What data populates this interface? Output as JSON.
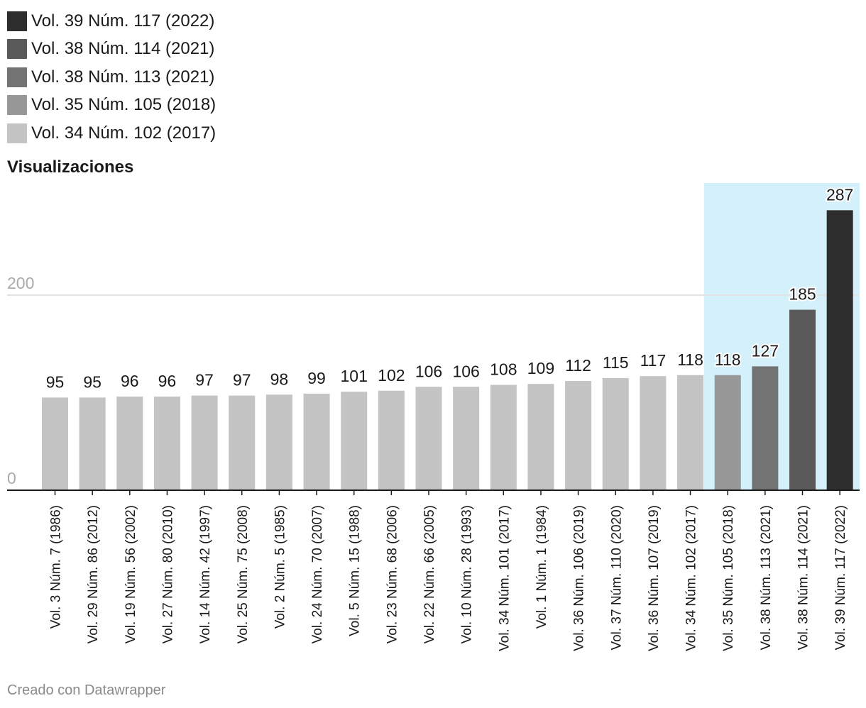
{
  "legend": [
    {
      "label": "Vol. 39 Núm. 117 (2022)",
      "color": "#2d2d2d"
    },
    {
      "label": "Vol. 38 Núm. 114 (2021)",
      "color": "#5a5a5a"
    },
    {
      "label": "Vol. 38 Núm. 113 (2021)",
      "color": "#737373"
    },
    {
      "label": "Vol. 35 Núm. 105 (2018)",
      "color": "#989898"
    },
    {
      "label": "Vol. 34 Núm. 102 (2017)",
      "color": "#c4c4c4"
    }
  ],
  "footer": "Creado con Datawrapper",
  "colors": {
    "default_bar": "#c4c4c4",
    "highlight_band": "#d4f0fb",
    "gridline": "#e2e2e2",
    "tick_text": "#aaaaaa",
    "axis": "#1a1a1a"
  },
  "chart_data": {
    "type": "bar",
    "ylabel": "Visualizaciones",
    "ylim": [
      0,
      300
    ],
    "yticks": [
      0,
      200
    ],
    "grid": true,
    "legend_position": "top-left",
    "highlight_start_category": "Vol. 35 Núm. 105 (2018)",
    "categories": [
      "Vol. 3 Núm. 7 (1986)",
      "Vol. 29 Núm. 86 (2012)",
      "Vol. 19 Núm. 56 (2002)",
      "Vol. 27 Núm. 80 (2010)",
      "Vol. 14 Núm. 42 (1997)",
      "Vol. 25 Núm. 75 (2008)",
      "Vol. 2 Núm. 5 (1985)",
      "Vol. 24 Núm. 70 (2007)",
      "Vol. 5 Núm. 15 (1988)",
      "Vol. 23 Núm. 68 (2006)",
      "Vol. 22 Núm. 66 (2005)",
      "Vol. 10 Núm. 28 (1993)",
      "Vol. 34 Núm. 101 (2017)",
      "Vol. 1 Núm. 1 (1984)",
      "Vol. 36 Núm. 106 (2019)",
      "Vol. 37 Núm. 110 (2020)",
      "Vol. 36 Núm. 107 (2019)",
      "Vol. 34 Núm. 102 (2017)",
      "Vol. 35 Núm. 105 (2018)",
      "Vol. 38 Núm. 113 (2021)",
      "Vol. 38 Núm. 114 (2021)",
      "Vol. 39 Núm. 117 (2022)"
    ],
    "values": [
      95,
      95,
      96,
      96,
      97,
      97,
      98,
      99,
      101,
      102,
      106,
      106,
      108,
      109,
      112,
      115,
      117,
      118,
      118,
      127,
      185,
      287
    ],
    "bar_colors": {
      "Vol. 34 Núm. 102 (2017)": "#c4c4c4",
      "Vol. 35 Núm. 105 (2018)": "#989898",
      "Vol. 38 Núm. 113 (2021)": "#737373",
      "Vol. 38 Núm. 114 (2021)": "#5a5a5a",
      "Vol. 39 Núm. 117 (2022)": "#2d2d2d"
    }
  }
}
